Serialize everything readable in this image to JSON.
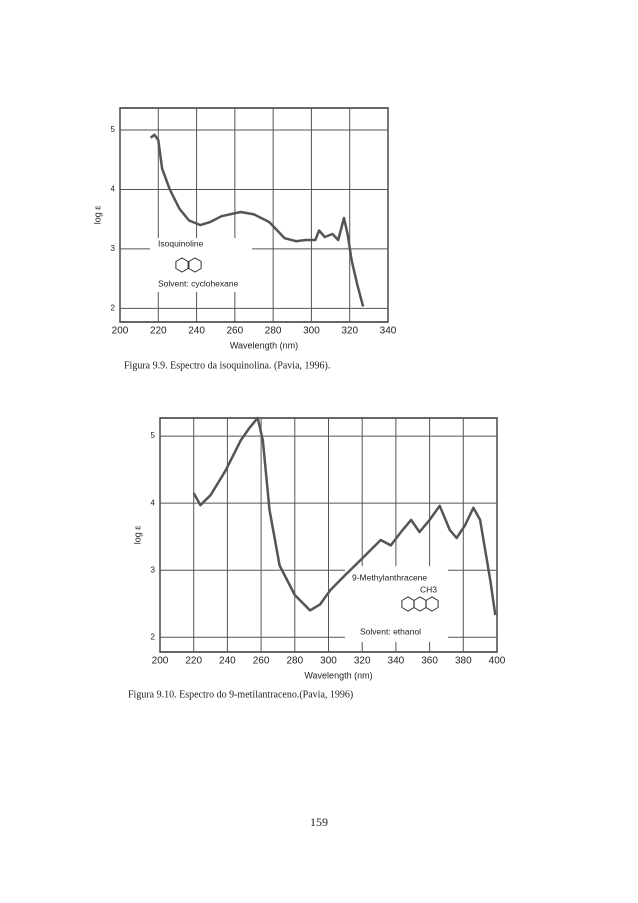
{
  "chart_data": [
    {
      "type": "line",
      "x_label": "Wavelength (nm)",
      "y_label": "log ε",
      "annotations": [
        "Isoquinoline",
        "Solvent: cyclohexane"
      ],
      "caption": "Figura 9.9. Espectro da isoquinolina. (Pavia, 1996).",
      "x": [
        216,
        218,
        220,
        222,
        226,
        231,
        236,
        242,
        247,
        253,
        263,
        270,
        278,
        286,
        292,
        297,
        302,
        304,
        307,
        311,
        314,
        317,
        319,
        321,
        324,
        327
      ],
      "values": [
        4.87,
        4.92,
        4.83,
        4.35,
        4.0,
        3.68,
        3.48,
        3.4,
        3.45,
        3.55,
        3.62,
        3.58,
        3.45,
        3.18,
        3.13,
        3.15,
        3.15,
        3.31,
        3.2,
        3.25,
        3.15,
        3.52,
        3.23,
        2.81,
        2.39,
        2.03
      ],
      "color": "#555555",
      "xlim": [
        200,
        340
      ],
      "xticks": [
        200,
        220,
        240,
        260,
        280,
        300,
        320,
        340
      ],
      "ylim": [
        1.77,
        5.37
      ],
      "yticks": [
        2,
        3,
        4,
        5
      ],
      "grid": true
    },
    {
      "type": "line",
      "x_label": "Wavelength (nm)",
      "y_label": "log ε",
      "annotations": [
        "9-Methylanthracene",
        "CH3",
        "Solvent: ethanol"
      ],
      "caption": "Figura 9.10. Espectro do 9-metilantraceno.(Pavia, 1996)",
      "x": [
        220,
        224,
        230,
        239,
        248,
        253,
        258,
        261,
        265,
        271,
        280,
        289,
        295,
        301,
        310,
        319,
        331,
        337,
        343,
        349,
        354,
        360,
        366,
        372,
        376,
        381,
        386,
        390,
        396,
        399
      ],
      "values": [
        4.15,
        3.97,
        4.12,
        4.49,
        4.94,
        5.12,
        5.27,
        4.94,
        3.9,
        3.07,
        2.63,
        2.4,
        2.49,
        2.7,
        2.93,
        3.15,
        3.45,
        3.37,
        3.57,
        3.75,
        3.57,
        3.75,
        3.96,
        3.6,
        3.48,
        3.67,
        3.93,
        3.75,
        2.85,
        2.33
      ],
      "color": "#555555",
      "xlim": [
        200,
        400
      ],
      "xticks": [
        200,
        220,
        240,
        260,
        280,
        300,
        320,
        340,
        360,
        380,
        400
      ],
      "ylim": [
        1.78,
        5.27
      ],
      "yticks": [
        2,
        3,
        4,
        5
      ],
      "grid": true
    }
  ],
  "page_number": "159"
}
